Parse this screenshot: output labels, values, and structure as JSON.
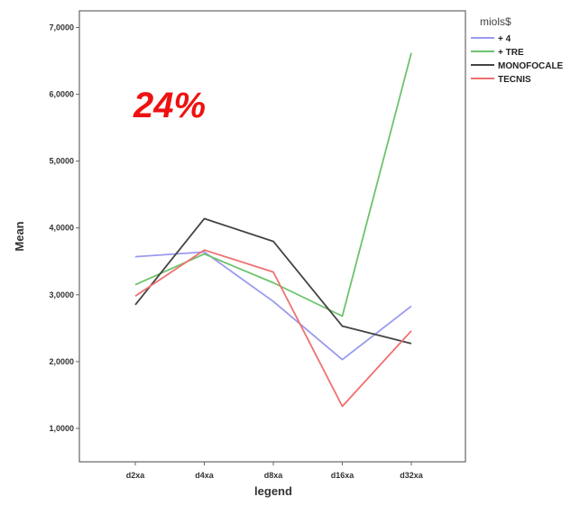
{
  "chart_data": {
    "type": "line",
    "categories": [
      "d2xa",
      "d4xa",
      "d8xa",
      "d16xa",
      "d32xa"
    ],
    "series": [
      {
        "name": "+ 4",
        "color": "#9a9af0",
        "values": [
          3.57,
          3.64,
          2.9,
          2.03,
          2.83
        ]
      },
      {
        "name": "+ TRE",
        "color": "#6cc36c",
        "values": [
          3.15,
          3.61,
          3.18,
          2.68,
          6.62
        ]
      },
      {
        "name": "MONOFOCALE",
        "color": "#444444",
        "values": [
          2.85,
          4.14,
          3.8,
          2.53,
          2.27
        ]
      },
      {
        "name": "TECNIS",
        "color": "#f07070",
        "values": [
          2.98,
          3.67,
          3.34,
          1.33,
          2.46
        ]
      }
    ],
    "xlabel": "legend",
    "ylabel": "Mean",
    "ylim": [
      0.5,
      7.25
    ],
    "yticks": [
      "1,0000",
      "2,0000",
      "3,0000",
      "4,0000",
      "5,0000",
      "6,0000",
      "7,0000"
    ],
    "legend_title": "miols$",
    "legend_position": "right",
    "annotation": "24%",
    "grid": false
  }
}
